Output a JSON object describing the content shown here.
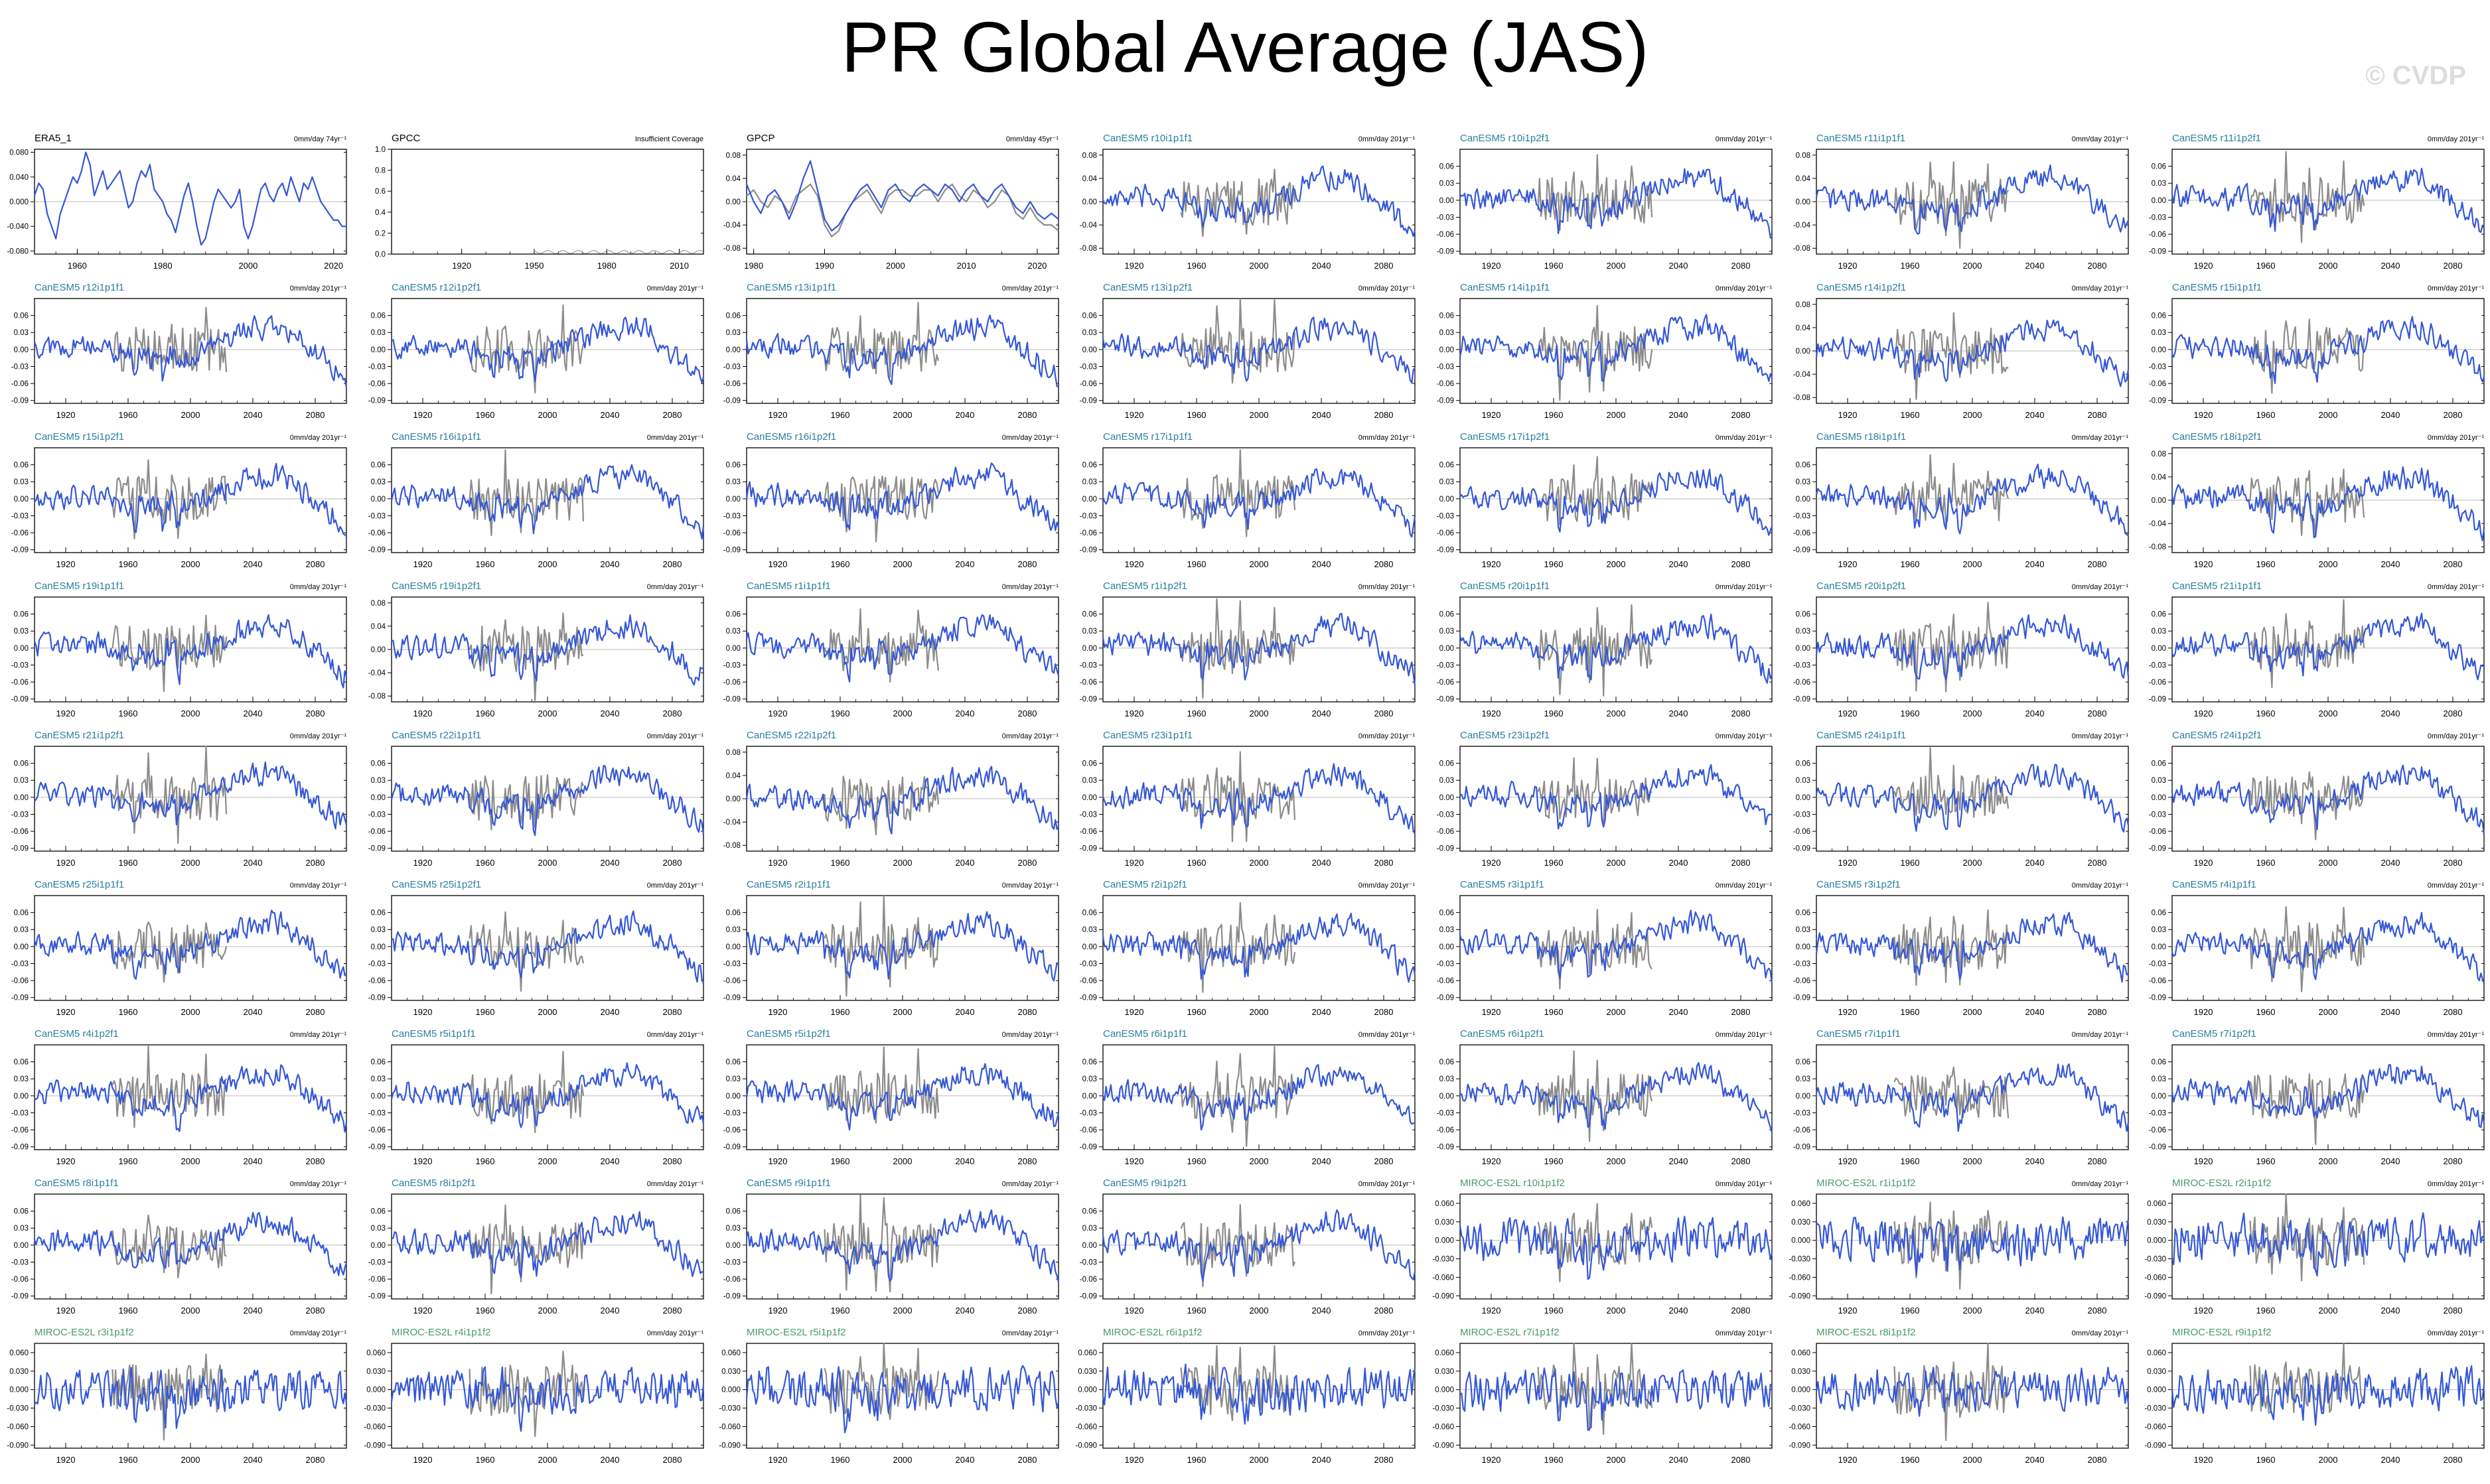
{
  "title": "PR Global Average (JAS)",
  "watermark": "© CVDP",
  "colors": {
    "model": "#3557d6",
    "obs": "#8c8c8c",
    "zero": "#bbbbbb",
    "canesm_label": "#2a7fa0",
    "miroc_label": "#4a9a6a",
    "obs_label": "#000000"
  },
  "chart_data": [
    {
      "type": "line",
      "title": "ERA5_1",
      "trend": "0mm/day 74yr⁻¹",
      "xlim": [
        1950,
        2023
      ],
      "xticks": [
        1960,
        1980,
        2000,
        2020
      ],
      "ylim": [
        -0.085,
        0.085
      ],
      "yticks": [
        "0.080",
        "0.040",
        "0.000",
        "-0.040",
        "-0.080"
      ],
      "ytick_values": [
        0.08,
        0.04,
        0,
        -0.04,
        -0.08
      ],
      "series": [
        {
          "role": "model",
          "values": [
            0.01,
            0.03,
            0.02,
            -0.02,
            -0.04,
            -0.06,
            -0.02,
            0.0,
            0.02,
            0.04,
            0.03,
            0.05,
            0.08,
            0.06,
            0.01,
            0.03,
            0.05,
            0.02,
            0.03,
            0.04,
            0.05,
            0.02,
            -0.01,
            0.0,
            0.03,
            0.05,
            0.04,
            0.06,
            0.02,
            0.01,
            0.0,
            -0.02,
            -0.03,
            -0.05,
            -0.02,
            0.01,
            0.03,
            0.0,
            -0.04,
            -0.07,
            -0.06,
            -0.03,
            0.0,
            0.02,
            0.01,
            0.0,
            -0.01,
            0.0,
            0.02,
            -0.04,
            -0.06,
            -0.04,
            -0.01,
            0.02,
            0.03,
            0.01,
            0.0,
            0.02,
            0.03,
            0.01,
            0.04,
            0.02,
            0.0,
            0.03,
            0.02,
            0.04,
            0.02,
            0.0,
            -0.01,
            -0.02,
            -0.03,
            -0.03,
            -0.04,
            -0.04
          ]
        }
      ]
    },
    {
      "type": "line",
      "title": "GPCC",
      "trend": "Insufficient Coverage",
      "xlim": [
        1891,
        2020
      ],
      "xticks": [
        1920,
        1950,
        1980,
        2010
      ],
      "ylim": [
        0.0,
        1.0
      ],
      "yticks": [
        "1.0",
        "0.8",
        "0.6",
        "0.4",
        "0.2",
        "0.0"
      ],
      "ytick_values": [
        1.0,
        0.8,
        0.6,
        0.4,
        0.2,
        0.0
      ],
      "series": []
    },
    {
      "type": "line",
      "title": "GPCP",
      "trend": "0mm/day 45yr⁻¹",
      "xlim": [
        1979,
        2023
      ],
      "xticks": [
        1980,
        1990,
        2000,
        2010,
        2020
      ],
      "ylim": [
        -0.09,
        0.09
      ],
      "yticks": [
        "0.08",
        "0.04",
        "0.00",
        "-0.04",
        "-0.08"
      ],
      "ytick_values": [
        0.08,
        0.04,
        0,
        -0.04,
        -0.08
      ],
      "series": [
        {
          "role": "model",
          "values": [
            0.03,
            0.0,
            -0.02,
            0.01,
            0.02,
            0.0,
            -0.03,
            0.0,
            0.04,
            0.07,
            0.02,
            -0.03,
            -0.05,
            -0.04,
            -0.02,
            0.0,
            0.02,
            0.03,
            0.01,
            -0.01,
            0.02,
            0.03,
            0.01,
            0.0,
            0.02,
            0.03,
            0.02,
            0.01,
            0.03,
            0.02,
            0.0,
            0.02,
            0.03,
            0.01,
            0.0,
            0.02,
            0.03,
            0.01,
            -0.01,
            -0.02,
            0.0,
            -0.02,
            -0.03,
            -0.02,
            -0.03
          ]
        },
        {
          "role": "obs",
          "values": [
            0.01,
            0.02,
            0.0,
            -0.01,
            0.01,
            0.0,
            -0.02,
            0.01,
            0.02,
            0.03,
            0.01,
            -0.04,
            -0.06,
            -0.05,
            -0.02,
            0.0,
            0.01,
            0.02,
            0.0,
            -0.02,
            0.01,
            0.02,
            0.02,
            0.01,
            0.01,
            0.02,
            0.02,
            0.0,
            0.02,
            0.03,
            0.01,
            0.0,
            0.02,
            0.01,
            -0.01,
            0.0,
            0.02,
            0.01,
            -0.02,
            -0.03,
            -0.01,
            -0.03,
            -0.04,
            -0.04,
            -0.05
          ]
        }
      ]
    },
    {
      "type": "line",
      "title": "CanESM5 r10i1p1f1",
      "trend": "0mm/day 201yr⁻¹"
    },
    {
      "type": "line",
      "title": "CanESM5 r10i1p2f1",
      "trend": "0mm/day 201yr⁻¹"
    },
    {
      "type": "line",
      "title": "CanESM5 r11i1p1f1",
      "trend": "0mm/day 201yr⁻¹"
    },
    {
      "type": "line",
      "title": "CanESM5 r11i1p2f1",
      "trend": "0mm/day 201yr⁻¹"
    },
    {
      "type": "line",
      "title": "CanESM5 r12i1p1f1",
      "trend": "0mm/day 201yr⁻¹"
    },
    {
      "type": "line",
      "title": "CanESM5 r12i1p2f1",
      "trend": "0mm/day 201yr⁻¹"
    },
    {
      "type": "line",
      "title": "CanESM5 r13i1p1f1",
      "trend": "0mm/day 201yr⁻¹"
    },
    {
      "type": "line",
      "title": "CanESM5 r13i1p2f1",
      "trend": "0mm/day 201yr⁻¹"
    },
    {
      "type": "line",
      "title": "CanESM5 r14i1p1f1",
      "trend": "0mm/day 201yr⁻¹"
    },
    {
      "type": "line",
      "title": "CanESM5 r14i1p2f1",
      "trend": "0mm/day 201yr⁻¹"
    },
    {
      "type": "line",
      "title": "CanESM5 r15i1p1f1",
      "trend": "0mm/day 201yr⁻¹"
    },
    {
      "type": "line",
      "title": "CanESM5 r15i1p2f1",
      "trend": "0mm/day 201yr⁻¹"
    },
    {
      "type": "line",
      "title": "CanESM5 r16i1p1f1",
      "trend": "0mm/day 201yr⁻¹"
    },
    {
      "type": "line",
      "title": "CanESM5 r16i1p2f1",
      "trend": "0mm/day 201yr⁻¹"
    },
    {
      "type": "line",
      "title": "CanESM5 r17i1p1f1",
      "trend": "0mm/day 201yr⁻¹"
    },
    {
      "type": "line",
      "title": "CanESM5 r17i1p2f1",
      "trend": "0mm/day 201yr⁻¹"
    },
    {
      "type": "line",
      "title": "CanESM5 r18i1p1f1",
      "trend": "0mm/day 201yr⁻¹"
    },
    {
      "type": "line",
      "title": "CanESM5 r18i1p2f1",
      "trend": "0mm/day 201yr⁻¹"
    },
    {
      "type": "line",
      "title": "CanESM5 r19i1p1f1",
      "trend": "0mm/day 201yr⁻¹"
    },
    {
      "type": "line",
      "title": "CanESM5 r19i1p2f1",
      "trend": "0mm/day 201yr⁻¹"
    },
    {
      "type": "line",
      "title": "CanESM5 r1i1p1f1",
      "trend": "0mm/day 201yr⁻¹"
    },
    {
      "type": "line",
      "title": "CanESM5 r1i1p2f1",
      "trend": "0mm/day 201yr⁻¹"
    },
    {
      "type": "line",
      "title": "CanESM5 r20i1p1f1",
      "trend": "0mm/day 201yr⁻¹"
    },
    {
      "type": "line",
      "title": "CanESM5 r20i1p2f1",
      "trend": "0mm/day 201yr⁻¹"
    },
    {
      "type": "line",
      "title": "CanESM5 r21i1p1f1",
      "trend": "0mm/day 201yr⁻¹"
    },
    {
      "type": "line",
      "title": "CanESM5 r21i1p2f1",
      "trend": "0mm/day 201yr⁻¹"
    },
    {
      "type": "line",
      "title": "CanESM5 r22i1p1f1",
      "trend": "0mm/day 201yr⁻¹"
    },
    {
      "type": "line",
      "title": "CanESM5 r22i1p2f1",
      "trend": "0mm/day 201yr⁻¹"
    },
    {
      "type": "line",
      "title": "CanESM5 r23i1p1f1",
      "trend": "0mm/day 201yr⁻¹"
    },
    {
      "type": "line",
      "title": "CanESM5 r23i1p2f1",
      "trend": "0mm/day 201yr⁻¹"
    },
    {
      "type": "line",
      "title": "CanESM5 r24i1p1f1",
      "trend": "0mm/day 201yr⁻¹"
    },
    {
      "type": "line",
      "title": "CanESM5 r24i1p2f1",
      "trend": "0mm/day 201yr⁻¹"
    },
    {
      "type": "line",
      "title": "CanESM5 r25i1p1f1",
      "trend": "0mm/day 201yr⁻¹"
    },
    {
      "type": "line",
      "title": "CanESM5 r25i1p2f1",
      "trend": "0mm/day 201yr⁻¹"
    },
    {
      "type": "line",
      "title": "CanESM5 r2i1p1f1",
      "trend": "0mm/day 201yr⁻¹"
    },
    {
      "type": "line",
      "title": "CanESM5 r2i1p2f1",
      "trend": "0mm/day 201yr⁻¹"
    },
    {
      "type": "line",
      "title": "CanESM5 r3i1p1f1",
      "trend": "0mm/day 201yr⁻¹"
    },
    {
      "type": "line",
      "title": "CanESM5 r3i1p2f1",
      "trend": "0mm/day 201yr⁻¹"
    },
    {
      "type": "line",
      "title": "CanESM5 r4i1p1f1",
      "trend": "0mm/day 201yr⁻¹"
    },
    {
      "type": "line",
      "title": "CanESM5 r4i1p2f1",
      "trend": "0mm/day 201yr⁻¹"
    },
    {
      "type": "line",
      "title": "CanESM5 r5i1p1f1",
      "trend": "0mm/day 201yr⁻¹"
    },
    {
      "type": "line",
      "title": "CanESM5 r5i1p2f1",
      "trend": "0mm/day 201yr⁻¹"
    },
    {
      "type": "line",
      "title": "CanESM5 r6i1p1f1",
      "trend": "0mm/day 201yr⁻¹"
    },
    {
      "type": "line",
      "title": "CanESM5 r6i1p2f1",
      "trend": "0mm/day 201yr⁻¹"
    },
    {
      "type": "line",
      "title": "CanESM5 r7i1p1f1",
      "trend": "0mm/day 201yr⁻¹"
    },
    {
      "type": "line",
      "title": "CanESM5 r7i1p2f1",
      "trend": "0mm/day 201yr⁻¹"
    },
    {
      "type": "line",
      "title": "CanESM5 r8i1p1f1",
      "trend": "0mm/day 201yr⁻¹"
    },
    {
      "type": "line",
      "title": "CanESM5 r8i1p2f1",
      "trend": "0mm/day 201yr⁻¹"
    },
    {
      "type": "line",
      "title": "CanESM5 r9i1p1f1",
      "trend": "0mm/day 201yr⁻¹"
    },
    {
      "type": "line",
      "title": "CanESM5 r9i1p2f1",
      "trend": "0mm/day 201yr⁻¹"
    },
    {
      "type": "line",
      "title": "MIROC-ES2L r10i1p1f2",
      "trend": "0mm/day 201yr⁻¹"
    },
    {
      "type": "line",
      "title": "MIROC-ES2L r1i1p1f2",
      "trend": "0mm/day 201yr⁻¹"
    },
    {
      "type": "line",
      "title": "MIROC-ES2L r2i1p1f2",
      "trend": "0mm/day 201yr⁻¹"
    },
    {
      "type": "line",
      "title": "MIROC-ES2L r3i1p1f2",
      "trend": "0mm/day 201yr⁻¹"
    },
    {
      "type": "line",
      "title": "MIROC-ES2L r4i1p1f2",
      "trend": "0mm/day 201yr⁻¹"
    },
    {
      "type": "line",
      "title": "MIROC-ES2L r5i1p1f2",
      "trend": "0mm/day 201yr⁻¹"
    },
    {
      "type": "line",
      "title": "MIROC-ES2L r6i1p1f2",
      "trend": "0mm/day 201yr⁻¹"
    },
    {
      "type": "line",
      "title": "MIROC-ES2L r7i1p1f2",
      "trend": "0mm/day 201yr⁻¹"
    },
    {
      "type": "line",
      "title": "MIROC-ES2L r8i1p1f2",
      "trend": "0mm/day 201yr⁻¹"
    },
    {
      "type": "line",
      "title": "MIROC-ES2L r9i1p1f2",
      "trend": "0mm/day 201yr⁻¹"
    }
  ],
  "model_axes": {
    "xlim": [
      1900,
      2100
    ],
    "xticks": [
      1920,
      1960,
      2000,
      2040,
      2080
    ],
    "default": {
      "ylim": [
        -0.095,
        0.09
      ],
      "yticks": [
        "0.06",
        "0.03",
        "0.00",
        "-0.03",
        "-0.06",
        "-0.09"
      ],
      "ytick_values": [
        0.06,
        0.03,
        0,
        -0.03,
        -0.06,
        -0.09
      ]
    },
    "wide8": {
      "ylim": [
        -0.09,
        0.09
      ],
      "yticks": [
        "0.08",
        "0.04",
        "0.00",
        "-0.04",
        "-0.08"
      ],
      "ytick_values": [
        0.08,
        0.04,
        0,
        -0.04,
        -0.08
      ]
    },
    "miroc": {
      "ylim": [
        -0.095,
        0.075
      ],
      "yticks": [
        "0.060",
        "0.030",
        "0.000",
        "-0.030",
        "-0.060",
        "-0.090"
      ],
      "ytick_values": [
        0.06,
        0.03,
        0,
        -0.03,
        -0.06,
        -0.09
      ]
    },
    "wide8_panels": [
      "CanESM5 r10i1p1f1",
      "CanESM5 r11i1p1f1",
      "CanESM5 r14i1p2f1",
      "CanESM5 r18i1p2f1",
      "CanESM5 r19i1p2f1",
      "CanESM5 r22i1p2f1"
    ],
    "obs_range": [
      1950,
      2023
    ]
  }
}
